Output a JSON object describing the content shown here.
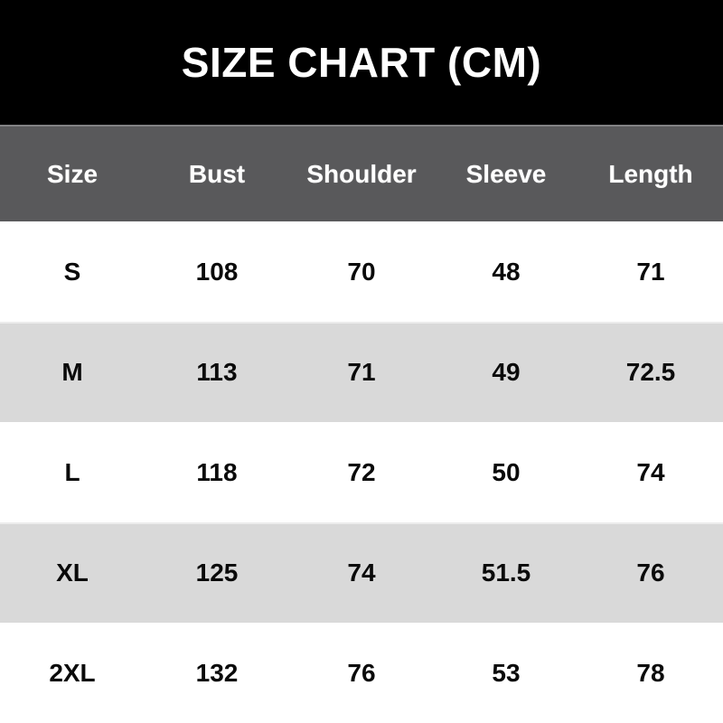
{
  "title": "SIZE CHART (CM)",
  "units": "cm",
  "table": {
    "columns": [
      "Size",
      "Bust",
      "Shoulder",
      "Sleeve",
      "Length"
    ],
    "rows": [
      [
        "S",
        "108",
        "70",
        "48",
        "71"
      ],
      [
        "M",
        "113",
        "71",
        "49",
        "72.5"
      ],
      [
        "L",
        "118",
        "72",
        "50",
        "74"
      ],
      [
        "XL",
        "125",
        "74",
        "51.5",
        "76"
      ],
      [
        "2XL",
        "132",
        "76",
        "53",
        "78"
      ]
    ]
  },
  "chart_data": {
    "type": "table",
    "title": "SIZE CHART (CM)",
    "columns": [
      "Size",
      "Bust",
      "Shoulder",
      "Sleeve",
      "Length"
    ],
    "rows": [
      [
        "S",
        108,
        70,
        48,
        71
      ],
      [
        "M",
        113,
        71,
        49,
        72.5
      ],
      [
        "L",
        118,
        72,
        50,
        74
      ],
      [
        "XL",
        125,
        74,
        51.5,
        76
      ],
      [
        "2XL",
        132,
        76,
        53,
        78
      ]
    ],
    "units": "cm"
  },
  "colors": {
    "title_background": "#000000",
    "title_text": "#ffffff",
    "header_background": "#59595b",
    "header_text": "#ffffff",
    "row_even_background": "#ffffff",
    "row_odd_background": "#d9d9d9",
    "row_text": "#0a0a0a"
  }
}
